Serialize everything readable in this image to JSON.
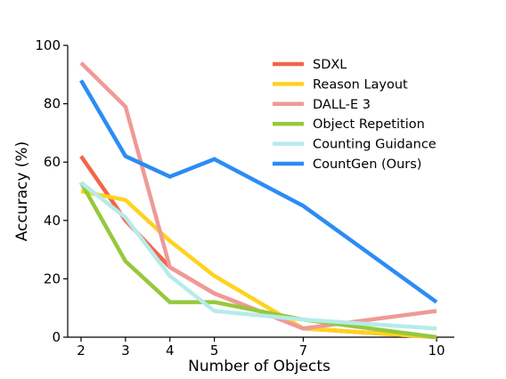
{
  "chart_data": {
    "type": "line",
    "xlabel": "Number of Objects",
    "ylabel": "Accuracy (%)",
    "x": [
      2,
      3,
      4,
      5,
      7,
      10
    ],
    "xlim": [
      1.7,
      10.4
    ],
    "ylim": [
      0,
      100
    ],
    "xticks": [
      "2",
      "3",
      "4",
      "5",
      "7",
      "10"
    ],
    "yticks": [
      "0",
      "20",
      "40",
      "60",
      "80",
      "100"
    ],
    "grid": false,
    "legend": "top-right",
    "series": [
      {
        "name": "SDXL",
        "color": "#f4654a",
        "values": [
          62,
          40,
          24,
          15,
          3,
          0
        ]
      },
      {
        "name": "Reason Layout",
        "color": "#ffd21f",
        "values": [
          50,
          47,
          33,
          21,
          3,
          0
        ]
      },
      {
        "name": "DALL-E 3",
        "color": "#ef9a96",
        "values": [
          94,
          79,
          24,
          15,
          3,
          9
        ]
      },
      {
        "name": "Object Repetition",
        "color": "#95c93d",
        "values": [
          53,
          26,
          12,
          12,
          6,
          0
        ]
      },
      {
        "name": "Counting Guidance",
        "color": "#b6ebe9",
        "values": [
          53,
          41,
          21,
          9,
          6,
          3
        ]
      },
      {
        "name": "CountGen (Ours)",
        "color": "#2c8cf4",
        "values": [
          88,
          62,
          55,
          61,
          45,
          12
        ]
      }
    ]
  }
}
